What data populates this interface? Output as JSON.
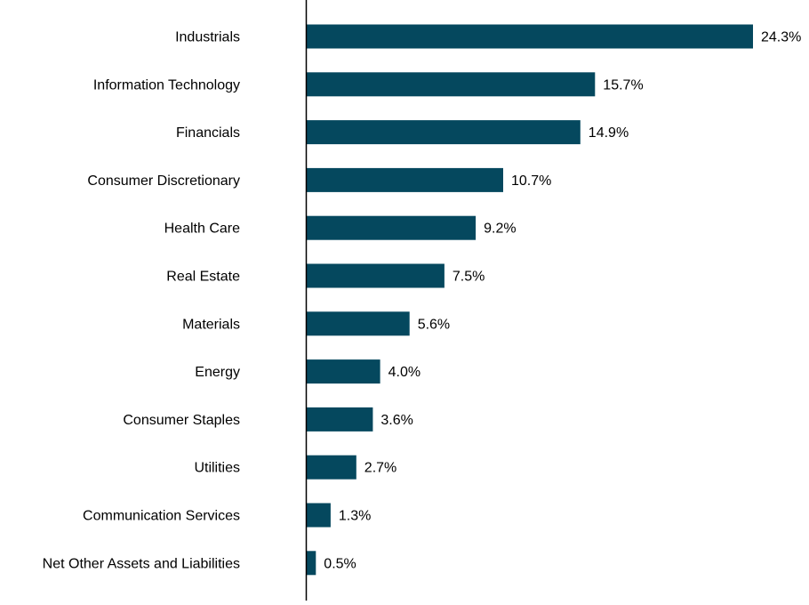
{
  "chart_data": {
    "type": "bar",
    "orientation": "horizontal",
    "categories": [
      "Industrials",
      "Information Technology",
      "Financials",
      "Consumer Discretionary",
      "Health Care",
      "Real Estate",
      "Materials",
      "Energy",
      "Consumer Staples",
      "Utilities",
      "Communication Services",
      "Net Other Assets and Liabilities"
    ],
    "values": [
      24.3,
      15.7,
      14.9,
      10.7,
      9.2,
      7.5,
      5.6,
      4.0,
      3.6,
      2.7,
      1.3,
      0.5
    ],
    "value_labels": [
      "24.3%",
      "15.7%",
      "14.9%",
      "10.7%",
      "9.2%",
      "7.5%",
      "5.6%",
      "4.0%",
      "3.6%",
      "2.7%",
      "1.3%",
      "0.5%"
    ],
    "title": "",
    "xlabel": "",
    "ylabel": "",
    "xlim": [
      0,
      24.3
    ],
    "grid": false,
    "legend": "none",
    "bar_color": "#05485E"
  }
}
